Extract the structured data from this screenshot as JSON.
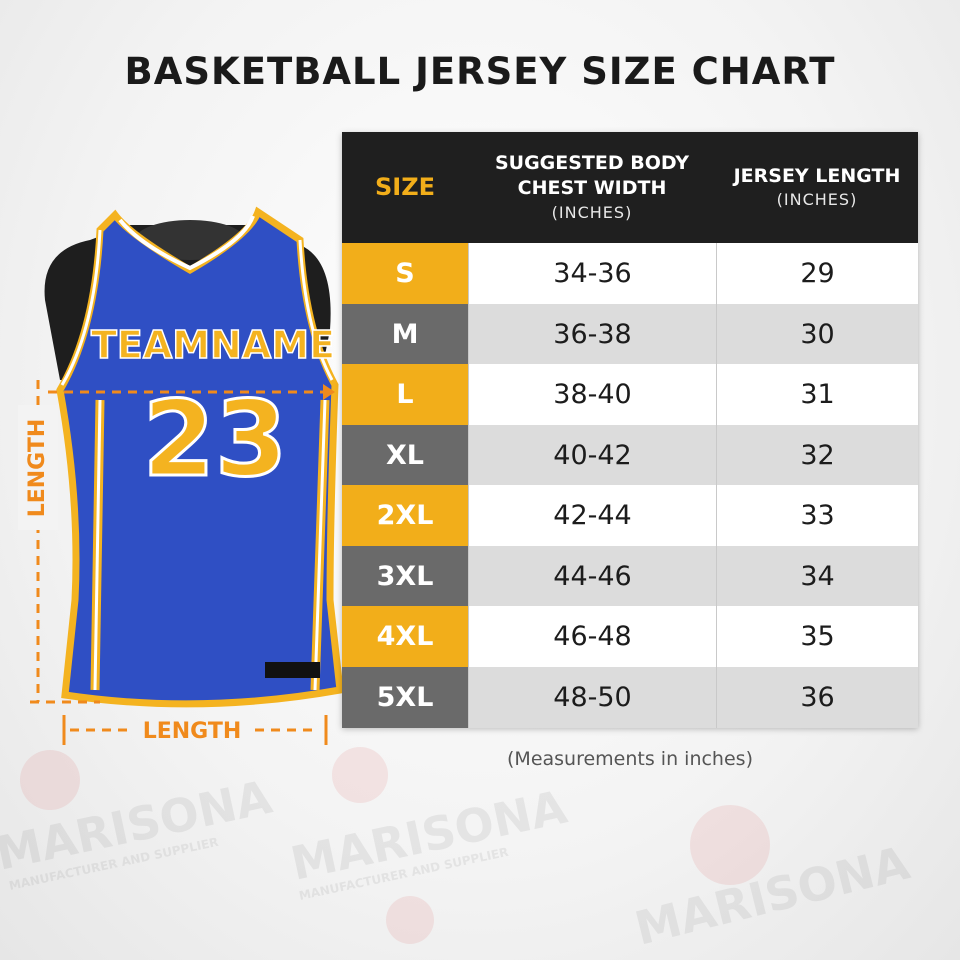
{
  "header": {
    "title": "BASKETBALL JERSEY SIZE CHART"
  },
  "table": {
    "columns": [
      {
        "label": "SIZE"
      },
      {
        "label": "SUGGESTED BODY CHEST WIDTH",
        "unit": "(INCHES)"
      },
      {
        "label": "JERSEY LENGTH",
        "unit": "(INCHES)"
      }
    ],
    "rows": [
      [
        "S",
        "34-36",
        29
      ],
      [
        "M",
        "36-38",
        30
      ],
      [
        "L",
        "38-40",
        31
      ],
      [
        "XL",
        "40-42",
        32
      ],
      [
        "2XL",
        "42-44",
        33
      ],
      [
        "3XL",
        "44-46",
        34
      ],
      [
        "4XL",
        "46-48",
        35
      ],
      [
        "5XL",
        "48-50",
        36
      ]
    ]
  },
  "note": "(Measurements in inches)",
  "jersey": {
    "team_name": "TEAMNAME",
    "number": "23",
    "length_vertical": "LENGTH",
    "length_horizontal": "LENGTH"
  },
  "watermark": {
    "brand": "MARISONA",
    "tagline": "MANUFACTURER AND SUPPLIER"
  }
}
